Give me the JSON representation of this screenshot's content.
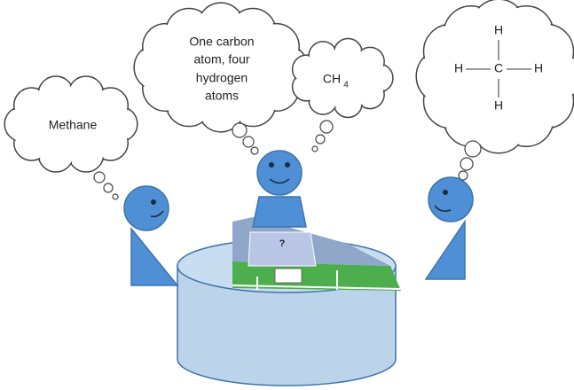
{
  "bubbles": {
    "methane": "Methane",
    "description": [
      "One carbon",
      "atom, four",
      "hydrogen",
      "atoms"
    ],
    "formula": {
      "base": "CH",
      "subscript": "4"
    },
    "structure": {
      "top": "H",
      "left": "H",
      "center": "C",
      "right": "H",
      "bottom": "H"
    }
  }
}
